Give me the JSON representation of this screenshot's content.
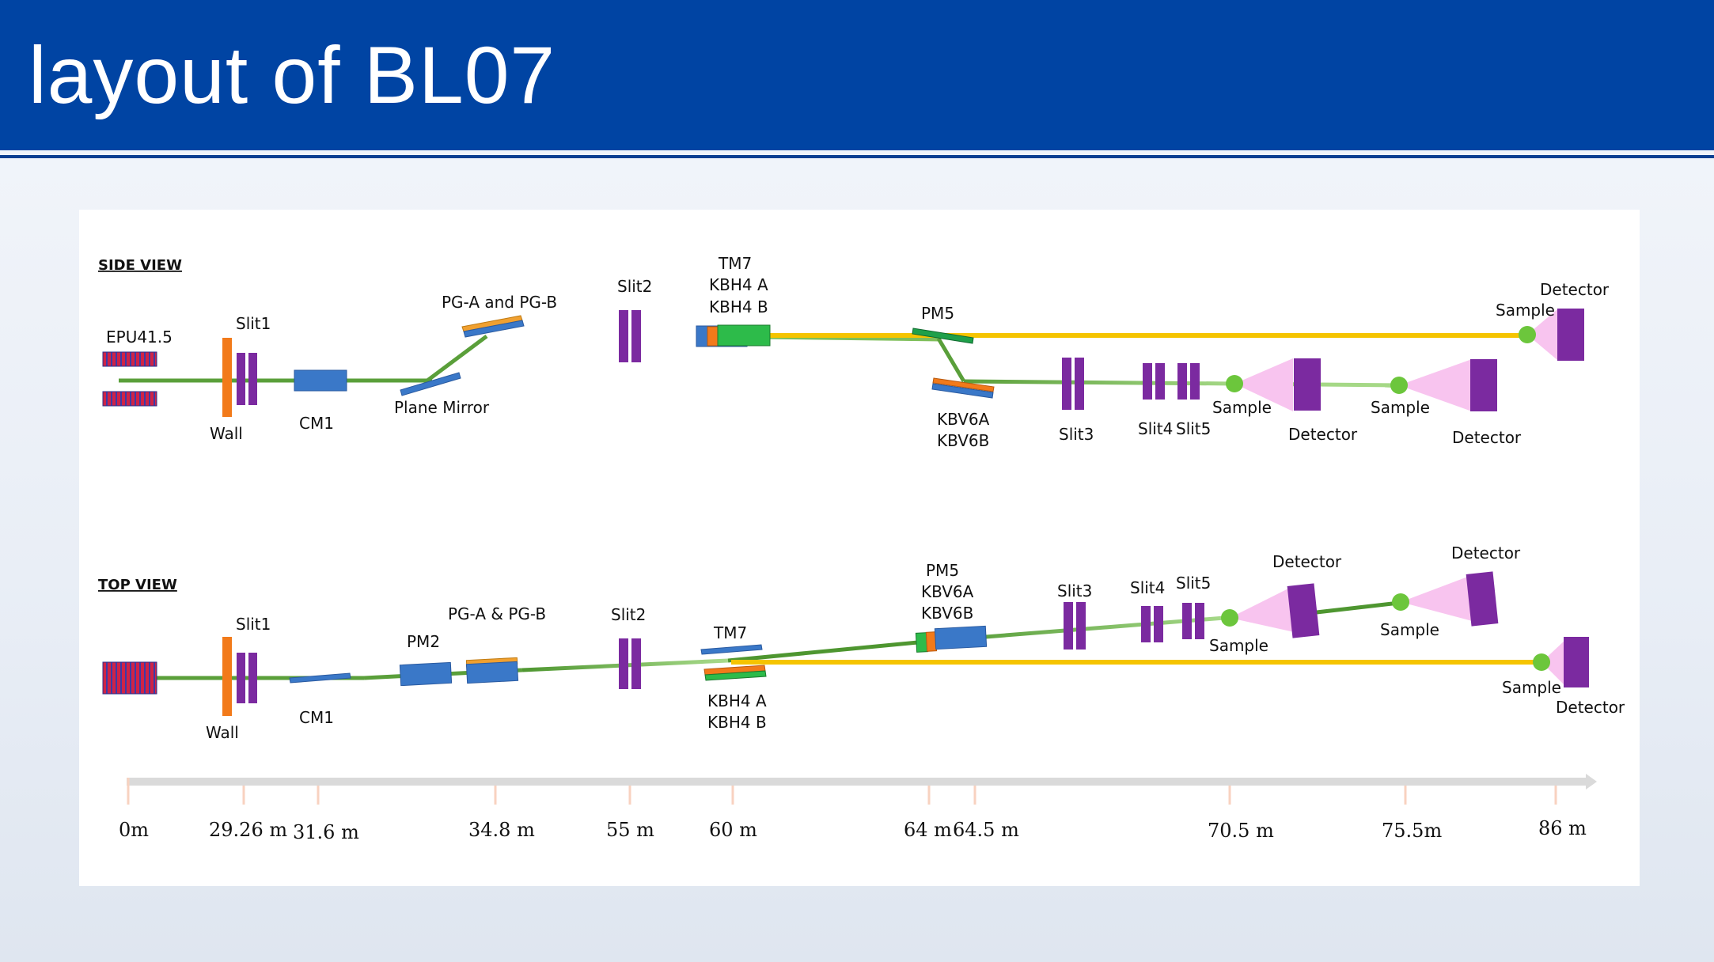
{
  "title": "layout of BL07",
  "side_view": {
    "heading": "SIDE VIEW",
    "labels": {
      "epu": "EPU41.5",
      "slit1": "Slit1",
      "wall": "Wall",
      "cm1": "CM1",
      "plane_mirror": "Plane Mirror",
      "pg": "PG-A and PG-B",
      "slit2": "Slit2",
      "tm7": "TM7",
      "kbh4a": "KBH4 A",
      "kbh4b": "KBH4 B",
      "pm5": "PM5",
      "kbv6a": "KBV6A",
      "kbv6b": "KBV6B",
      "slit3": "Slit3",
      "slit4": "Slit4",
      "slit5": "Slit5",
      "sample_1": "Sample",
      "detector_1": "Detector",
      "sample_2": "Sample",
      "detector_2": "Detector",
      "sample_3": "Sample",
      "detector_3": "Detector"
    }
  },
  "top_view": {
    "heading": "TOP VIEW",
    "labels": {
      "slit1": "Slit1",
      "wall": "Wall",
      "cm1": "CM1",
      "pm2": "PM2",
      "pg": "PG-A & PG-B",
      "slit2": "Slit2",
      "tm7": "TM7",
      "kbh4a": "KBH4 A",
      "kbh4b": "KBH4 B",
      "pm5": "PM5",
      "kbv6a": "KBV6A",
      "kbv6b": "KBV6B",
      "slit3": "Slit3",
      "slit4": "Slit4",
      "slit5": "Slit5",
      "sample_1": "Sample",
      "detector_1": "Detector",
      "sample_2": "Sample",
      "detector_2": "Detector",
      "sample_3": "Sample",
      "detector_3": "Detector"
    }
  },
  "scale": {
    "ticks": [
      "0m",
      "29.26 m",
      "31.6 m",
      "34.8 m",
      "55 m",
      "60 m",
      "64 m",
      "64.5 m",
      "70.5 m",
      "75.5m",
      "86 m"
    ]
  },
  "colors": {
    "header": "#0044a3",
    "beam_green": "#4f9a2e",
    "beam_light": "#9fd67a",
    "beam_yellow": "#f5c400",
    "slit": "#7b2aa0",
    "optic": "#3a78c8",
    "wall": "#f27a1a",
    "sample": "#6cc63c",
    "cone": "#f8c4ef",
    "epu_fill": "#cf2346"
  }
}
